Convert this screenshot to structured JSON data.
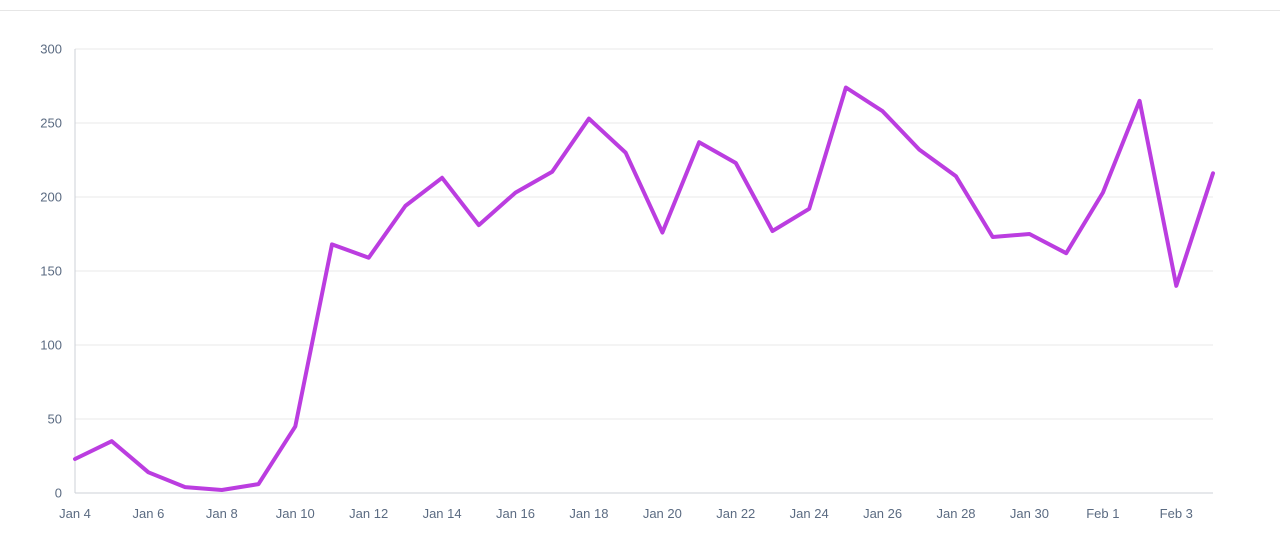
{
  "page": {
    "background_color": "#ffffff",
    "top_divider_color": "#e6e6e6"
  },
  "chart_data": {
    "type": "line",
    "title": "",
    "xlabel": "",
    "ylabel": "",
    "x": [
      "Jan 4",
      "Jan 5",
      "Jan 6",
      "Jan 7",
      "Jan 8",
      "Jan 9",
      "Jan 10",
      "Jan 11",
      "Jan 12",
      "Jan 13",
      "Jan 14",
      "Jan 15",
      "Jan 16",
      "Jan 17",
      "Jan 18",
      "Jan 19",
      "Jan 20",
      "Jan 21",
      "Jan 22",
      "Jan 23",
      "Jan 24",
      "Jan 25",
      "Jan 26",
      "Jan 27",
      "Jan 28",
      "Jan 29",
      "Jan 30",
      "Jan 31",
      "Feb 1",
      "Feb 2",
      "Feb 3",
      "Feb 4"
    ],
    "values": [
      23,
      35,
      14,
      4,
      2,
      6,
      45,
      168,
      159,
      194,
      213,
      181,
      203,
      217,
      253,
      230,
      176,
      237,
      223,
      177,
      192,
      274,
      258,
      232,
      214,
      173,
      175,
      162,
      203,
      265,
      140,
      216
    ],
    "x_tick_labels": [
      "Jan 4",
      "Jan 6",
      "Jan 8",
      "Jan 10",
      "Jan 12",
      "Jan 14",
      "Jan 16",
      "Jan 18",
      "Jan 20",
      "Jan 22",
      "Jan 24",
      "Jan 26",
      "Jan 28",
      "Jan 30",
      "Feb 1",
      "Feb 3"
    ],
    "x_tick_every": 2,
    "y_ticks": [
      0,
      50,
      100,
      150,
      200,
      250,
      300
    ],
    "ylim": [
      0,
      300
    ],
    "grid": "horizontal",
    "legend": "none",
    "line_color": "#bb3de0",
    "line_width": 4,
    "grid_color": "#e9e9e9",
    "axis_color": "#ccd1d7",
    "label_color": "#5b6b82",
    "label_font_size": 13
  }
}
